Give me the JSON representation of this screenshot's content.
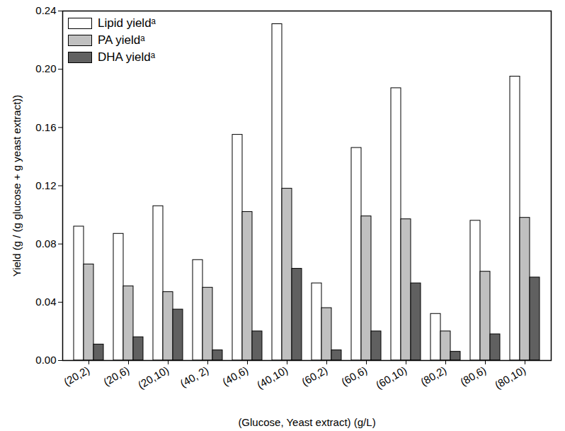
{
  "chart_data": {
    "type": "bar",
    "x_label": "(Glucose, Yeast extract) (g/L)",
    "y_label": "Yield (g / (g glucose + g yeast extract))",
    "categories": [
      "(20,2)",
      "(20,6)",
      "(20,10)",
      "(40, 2)",
      "(40,6)",
      "(40,10)",
      "(60,2)",
      "(60,6)",
      "(60,10)",
      "(80,2)",
      "(80,6)",
      "(80,10)"
    ],
    "series": [
      {
        "name": "Lipid yieldᵃ",
        "color": "#ffffff",
        "values": [
          0.092,
          0.087,
          0.106,
          0.069,
          0.155,
          0.231,
          0.053,
          0.146,
          0.187,
          0.032,
          0.096,
          0.195
        ]
      },
      {
        "name": "PA yieldᵃ",
        "color": "#c0c0c0",
        "values": [
          0.066,
          0.051,
          0.047,
          0.05,
          0.102,
          0.118,
          0.036,
          0.099,
          0.097,
          0.02,
          0.061,
          0.098
        ]
      },
      {
        "name": "DHA yieldᵃ",
        "color": "#606060",
        "values": [
          0.011,
          0.016,
          0.035,
          0.007,
          0.02,
          0.063,
          0.007,
          0.02,
          0.053,
          0.006,
          0.018,
          0.057
        ]
      }
    ],
    "ylim": [
      0,
      0.24
    ],
    "yticks": [
      {
        "value": 0,
        "label": "0.00"
      },
      0.04,
      0.08,
      0.12,
      0.16,
      {
        "value": 0.2,
        "label": "0.20"
      },
      0.24
    ],
    "grid": false,
    "legend": "upper left"
  }
}
